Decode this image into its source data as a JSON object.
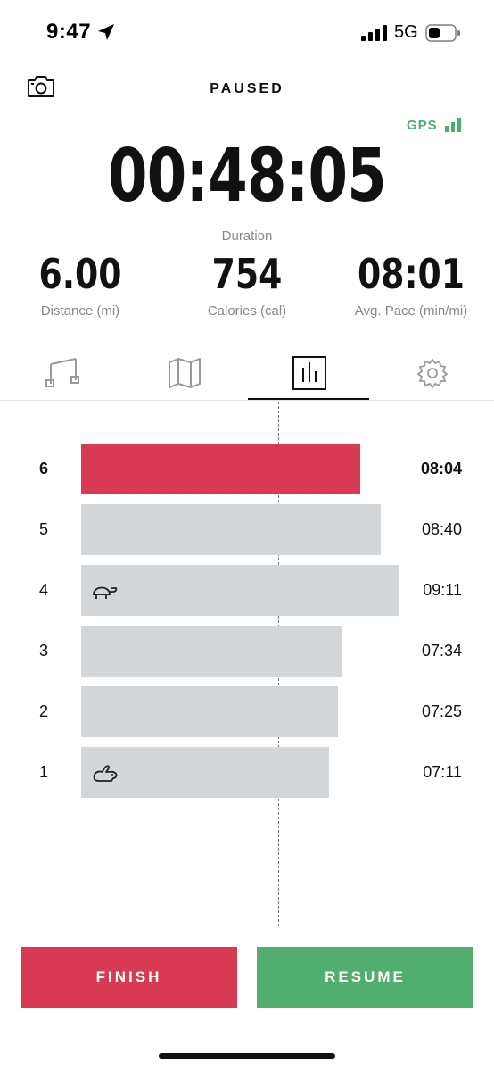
{
  "status_bar": {
    "time": "9:47",
    "network": "5G"
  },
  "header": {
    "title": "PAUSED",
    "gps_label": "GPS"
  },
  "duration": {
    "value": "00:48:05",
    "label": "Duration"
  },
  "metrics": [
    {
      "value": "6.00",
      "label": "Distance (mi)"
    },
    {
      "value": "754",
      "label": "Calories (cal)"
    },
    {
      "value": "08:01",
      "label": "Avg. Pace (min/mi)"
    }
  ],
  "tabs": [
    {
      "icon": "music-icon",
      "active": false
    },
    {
      "icon": "map-icon",
      "active": false
    },
    {
      "icon": "bar-chart-icon",
      "active": true
    },
    {
      "icon": "gear-icon",
      "active": false
    }
  ],
  "chart_data": {
    "type": "bar",
    "orientation": "horizontal",
    "categories": [
      "6",
      "5",
      "4",
      "3",
      "2",
      "1"
    ],
    "pace_labels": [
      "08:04",
      "08:40",
      "09:11",
      "07:34",
      "07:25",
      "07:11"
    ],
    "values_seconds": [
      484,
      520,
      551,
      454,
      445,
      431
    ],
    "average_pace_seconds": 481,
    "current_split": "6",
    "slowest_split": "4",
    "fastest_split": "1",
    "colors": {
      "current": "#d73a52",
      "other": "#d4d7da"
    }
  },
  "actions": {
    "finish_label": "FINISH",
    "resume_label": "RESUME"
  },
  "colors": {
    "finish": "#d73a52",
    "resume": "#52ae6e",
    "gps": "#4caf6e"
  }
}
